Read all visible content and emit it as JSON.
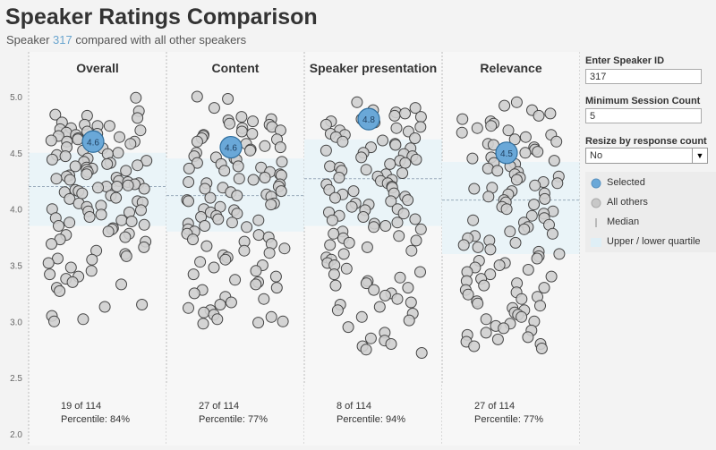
{
  "header": {
    "title": "Speaker Ratings Comparison",
    "subtitle_prefix": "Speaker",
    "subtitle_speaker_id": "317",
    "subtitle_suffix": "compared with all other speakers"
  },
  "controls": {
    "speaker_id_label": "Enter Speaker ID",
    "speaker_id_value": "317",
    "min_session_label": "Minimum Session Count",
    "min_session_value": "5",
    "resize_label": "Resize by response count",
    "resize_value": "No"
  },
  "legend": {
    "selected": "Selected",
    "all_others": "All others",
    "median": "Median",
    "quartile": "Upper / lower quartile"
  },
  "colors": {
    "selected": "#6aa8d8",
    "others": "#cfcfcf",
    "median_line": "#9ab",
    "quartile_band": "#eaf4f8"
  },
  "chart_data": {
    "type": "scatter",
    "chart_subtype": "jitter strip plot",
    "ylim": [
      2.0,
      5.0
    ],
    "yticks": [
      "2.0",
      "2.5",
      "3.0",
      "3.5",
      "4.0",
      "4.5",
      "5.0"
    ],
    "grid": false,
    "panels": [
      {
        "name": "Overall",
        "selected_value": 4.6,
        "selected_label": "4.6",
        "median": 4.2,
        "q1": 3.85,
        "q3": 4.5,
        "rank_text": "19 of 114",
        "percentile_text": "Percentile: 84%",
        "values": [
          4.99,
          4.87,
          4.84,
          4.83,
          4.81,
          4.77,
          4.75,
          4.74,
          4.74,
          4.72,
          4.71,
          4.7,
          4.69,
          4.68,
          4.67,
          4.66,
          4.65,
          4.64,
          4.63,
          4.62,
          4.61,
          4.6,
          4.6,
          4.58,
          4.57,
          4.55,
          4.54,
          4.52,
          4.5,
          4.49,
          4.48,
          4.47,
          4.45,
          4.44,
          4.43,
          4.42,
          4.41,
          4.4,
          4.39,
          4.38,
          4.37,
          4.36,
          4.35,
          4.34,
          4.33,
          4.31,
          4.3,
          4.29,
          4.28,
          4.27,
          4.26,
          4.25,
          4.24,
          4.23,
          4.22,
          4.21,
          4.2,
          4.2,
          4.19,
          4.18,
          4.17,
          4.16,
          4.15,
          4.14,
          4.12,
          4.1,
          4.09,
          4.07,
          4.06,
          4.05,
          4.03,
          4.02,
          4.0,
          3.99,
          3.98,
          3.97,
          3.95,
          3.93,
          3.92,
          3.9,
          3.89,
          3.88,
          3.86,
          3.85,
          3.83,
          3.82,
          3.8,
          3.78,
          3.77,
          3.75,
          3.73,
          3.71,
          3.69,
          3.66,
          3.63,
          3.6,
          3.58,
          3.56,
          3.55,
          3.52,
          3.48,
          3.45,
          3.42,
          3.4,
          3.38,
          3.35,
          3.33,
          3.3,
          3.27,
          3.15,
          3.13,
          3.05,
          3.02,
          3.0
        ]
      },
      {
        "name": "Content",
        "selected_value": 4.55,
        "selected_label": "4.6",
        "median": 4.12,
        "q1": 3.8,
        "q3": 4.45,
        "rank_text": "27 of 114",
        "percentile_text": "Percentile: 77%",
        "values": [
          5.0,
          4.98,
          4.9,
          4.82,
          4.8,
          4.79,
          4.78,
          4.76,
          4.75,
          4.73,
          4.72,
          4.7,
          4.69,
          4.67,
          4.66,
          4.65,
          4.63,
          4.62,
          4.6,
          4.59,
          4.58,
          4.56,
          4.55,
          4.53,
          4.52,
          4.5,
          4.49,
          4.47,
          4.46,
          4.45,
          4.44,
          4.42,
          4.41,
          4.4,
          4.38,
          4.37,
          4.36,
          4.34,
          4.33,
          4.31,
          4.3,
          4.28,
          4.27,
          4.26,
          4.24,
          4.23,
          4.22,
          4.2,
          4.19,
          4.18,
          4.16,
          4.15,
          4.13,
          4.12,
          4.11,
          4.1,
          4.08,
          4.07,
          4.05,
          4.04,
          4.02,
          4.0,
          3.99,
          3.97,
          3.96,
          3.94,
          3.93,
          3.91,
          3.9,
          3.88,
          3.87,
          3.85,
          3.84,
          3.82,
          3.8,
          3.78,
          3.77,
          3.75,
          3.73,
          3.71,
          3.69,
          3.67,
          3.65,
          3.63,
          3.61,
          3.59,
          3.57,
          3.55,
          3.53,
          3.5,
          3.48,
          3.45,
          3.42,
          3.4,
          3.37,
          3.35,
          3.33,
          3.3,
          3.28,
          3.25,
          3.22,
          3.2,
          3.17,
          3.15,
          3.12,
          3.1,
          3.08,
          3.06,
          3.04,
          3.02,
          3.0,
          2.99,
          2.98
        ]
      },
      {
        "name": "Speaker presentation",
        "selected_value": 4.8,
        "selected_label": "4.8",
        "median": 4.27,
        "q1": 3.85,
        "q3": 4.62,
        "rank_text": "8 of 114",
        "percentile_text": "Percentile: 94%",
        "values": [
          4.95,
          4.9,
          4.88,
          4.86,
          4.85,
          4.83,
          4.82,
          4.8,
          4.78,
          4.77,
          4.75,
          4.73,
          4.72,
          4.7,
          4.69,
          4.67,
          4.66,
          4.64,
          4.63,
          4.61,
          4.6,
          4.58,
          4.57,
          4.55,
          4.54,
          4.52,
          4.5,
          4.49,
          4.47,
          4.46,
          4.44,
          4.43,
          4.41,
          4.4,
          4.38,
          4.37,
          4.35,
          4.34,
          4.32,
          4.31,
          4.29,
          4.28,
          4.26,
          4.25,
          4.23,
          4.22,
          4.2,
          4.19,
          4.17,
          4.16,
          4.14,
          4.13,
          4.11,
          4.1,
          4.08,
          4.07,
          4.05,
          4.04,
          4.02,
          4.0,
          3.99,
          3.97,
          3.96,
          3.94,
          3.93,
          3.91,
          3.9,
          3.88,
          3.87,
          3.85,
          3.84,
          3.82,
          3.8,
          3.78,
          3.76,
          3.74,
          3.72,
          3.7,
          3.68,
          3.66,
          3.63,
          3.6,
          3.57,
          3.55,
          3.52,
          3.5,
          3.47,
          3.44,
          3.42,
          3.39,
          3.36,
          3.34,
          3.32,
          3.3,
          3.28,
          3.25,
          3.23,
          3.2,
          3.17,
          3.15,
          3.13,
          3.1,
          3.07,
          3.04,
          3.01,
          2.95,
          2.9,
          2.85,
          2.83,
          2.8,
          2.78,
          2.75,
          2.72
        ]
      },
      {
        "name": "Relevance",
        "selected_value": 4.5,
        "selected_label": "4.5",
        "median": 4.08,
        "q1": 3.6,
        "q3": 4.42,
        "rank_text": "27 of 114",
        "percentile_text": "Percentile: 77%",
        "values": [
          4.95,
          4.92,
          4.88,
          4.85,
          4.83,
          4.8,
          4.78,
          4.76,
          4.74,
          4.72,
          4.7,
          4.68,
          4.66,
          4.64,
          4.62,
          4.6,
          4.58,
          4.57,
          4.55,
          4.53,
          4.51,
          4.5,
          4.48,
          4.46,
          4.45,
          4.43,
          4.41,
          4.4,
          4.38,
          4.36,
          4.34,
          4.33,
          4.31,
          4.29,
          4.28,
          4.26,
          4.24,
          4.23,
          4.21,
          4.19,
          4.18,
          4.16,
          4.14,
          4.13,
          4.11,
          4.09,
          4.08,
          4.06,
          4.04,
          4.02,
          4.0,
          3.98,
          3.96,
          3.94,
          3.92,
          3.9,
          3.88,
          3.86,
          3.84,
          3.82,
          3.8,
          3.78,
          3.76,
          3.74,
          3.72,
          3.7,
          3.68,
          3.66,
          3.64,
          3.62,
          3.6,
          3.58,
          3.56,
          3.54,
          3.52,
          3.5,
          3.48,
          3.46,
          3.44,
          3.42,
          3.4,
          3.38,
          3.36,
          3.34,
          3.32,
          3.3,
          3.28,
          3.26,
          3.24,
          3.22,
          3.2,
          3.18,
          3.16,
          3.14,
          3.12,
          3.1,
          3.08,
          3.06,
          3.04,
          3.02,
          3.0,
          2.98,
          2.96,
          2.94,
          2.92,
          2.9,
          2.88,
          2.86,
          2.84,
          2.82,
          2.8,
          2.78,
          2.76
        ]
      }
    ]
  }
}
